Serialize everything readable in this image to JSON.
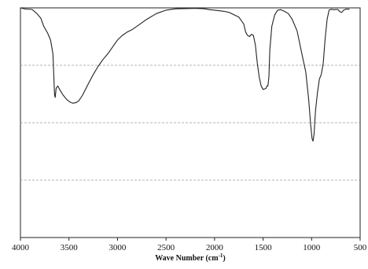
{
  "chart_data": {
    "type": "line",
    "title": "",
    "xlabel": "Wave Number (cm",
    "xlabel_sup": "-1",
    "xlabel_close": ")",
    "ylabel": "",
    "x_tick_labels": [
      "4000",
      "3500",
      "3000",
      "2500",
      "2000",
      "1500",
      "1000",
      "500"
    ],
    "x_ticks": [
      4000,
      3500,
      3000,
      2500,
      2000,
      1500,
      1000,
      500
    ],
    "xlim": [
      4000,
      500
    ],
    "x_reversed": true,
    "ylim": [
      0,
      100
    ],
    "y_gridlines": [
      25,
      50,
      75
    ],
    "grid": "horizontal-dashed",
    "legend": "none",
    "series": [
      {
        "values": [
          [
            4000,
            100
          ],
          [
            3950,
            99.5
          ],
          [
            3880,
            99.3
          ],
          [
            3830,
            97.5
          ],
          [
            3790,
            95.5
          ],
          [
            3760,
            92
          ],
          [
            3720,
            89
          ],
          [
            3690,
            86
          ],
          [
            3665,
            80
          ],
          [
            3655,
            69
          ],
          [
            3648,
            62
          ],
          [
            3642,
            61
          ],
          [
            3632,
            65
          ],
          [
            3615,
            66
          ],
          [
            3590,
            64
          ],
          [
            3560,
            62
          ],
          [
            3520,
            60
          ],
          [
            3490,
            59
          ],
          [
            3460,
            58.5
          ],
          [
            3430,
            58.7
          ],
          [
            3400,
            59.5
          ],
          [
            3360,
            62
          ],
          [
            3300,
            67
          ],
          [
            3250,
            71
          ],
          [
            3200,
            74.5
          ],
          [
            3150,
            77.5
          ],
          [
            3100,
            80
          ],
          [
            3050,
            83
          ],
          [
            3000,
            86
          ],
          [
            2950,
            88
          ],
          [
            2900,
            89.5
          ],
          [
            2850,
            90.5
          ],
          [
            2800,
            92
          ],
          [
            2700,
            95
          ],
          [
            2600,
            97.5
          ],
          [
            2500,
            99
          ],
          [
            2400,
            99.6
          ],
          [
            2300,
            99.7
          ],
          [
            2200,
            99.8
          ],
          [
            2100,
            99.6
          ],
          [
            2050,
            99.2
          ],
          [
            2000,
            99
          ],
          [
            1900,
            98.5
          ],
          [
            1850,
            98
          ],
          [
            1800,
            97
          ],
          [
            1750,
            96
          ],
          [
            1700,
            93
          ],
          [
            1680,
            89.5
          ],
          [
            1660,
            88
          ],
          [
            1640,
            87.5
          ],
          [
            1620,
            88.5
          ],
          [
            1600,
            88
          ],
          [
            1580,
            84
          ],
          [
            1560,
            76
          ],
          [
            1540,
            70
          ],
          [
            1520,
            66
          ],
          [
            1500,
            64.5
          ],
          [
            1485,
            64.7
          ],
          [
            1470,
            65
          ],
          [
            1460,
            66
          ],
          [
            1450,
            66
          ],
          [
            1440,
            70
          ],
          [
            1430,
            82
          ],
          [
            1410,
            92
          ],
          [
            1380,
            97
          ],
          [
            1350,
            99
          ],
          [
            1320,
            99.2
          ],
          [
            1280,
            98.5
          ],
          [
            1240,
            97.5
          ],
          [
            1200,
            95
          ],
          [
            1150,
            90
          ],
          [
            1100,
            80
          ],
          [
            1060,
            72
          ],
          [
            1030,
            60
          ],
          [
            1010,
            49
          ],
          [
            995,
            43
          ],
          [
            985,
            42
          ],
          [
            975,
            45
          ],
          [
            960,
            55
          ],
          [
            940,
            63
          ],
          [
            920,
            69
          ],
          [
            900,
            71
          ],
          [
            880,
            76
          ],
          [
            860,
            87
          ],
          [
            840,
            95
          ],
          [
            820,
            99
          ],
          [
            800,
            99.4
          ],
          [
            770,
            99.2
          ],
          [
            730,
            99.3
          ],
          [
            710,
            98.4
          ],
          [
            690,
            98
          ],
          [
            670,
            99
          ],
          [
            640,
            99.5
          ],
          [
            620,
            99.4
          ],
          [
            610,
            99.5
          ]
        ]
      }
    ]
  }
}
